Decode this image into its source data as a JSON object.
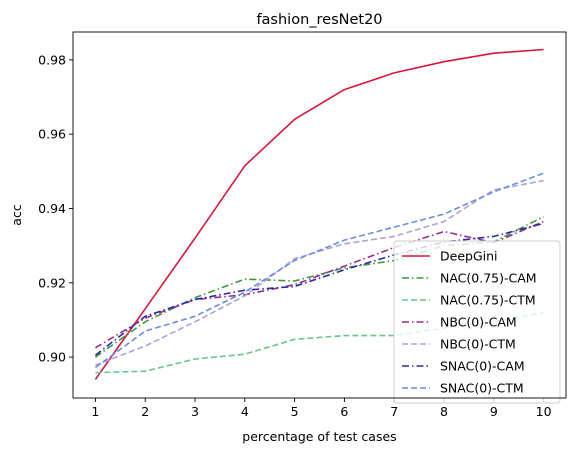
{
  "chart_data": {
    "type": "line",
    "title": "fashion_resNet20",
    "xlabel": "percentage of test cases",
    "ylabel": "acc",
    "x": [
      1,
      2,
      3,
      4,
      5,
      6,
      7,
      8,
      9,
      10
    ],
    "xticks": [
      "1",
      "2",
      "3",
      "4",
      "5",
      "6",
      "7",
      "8",
      "9",
      "10"
    ],
    "yticks": [
      0.9,
      0.92,
      0.94,
      0.96,
      0.98
    ],
    "ytick_labels": [
      "0.90",
      "0.92",
      "0.94",
      "0.96",
      "0.98"
    ],
    "xlim": [
      0.55,
      10.45
    ],
    "ylim": [
      0.889,
      0.9875
    ],
    "grid": false,
    "legend": "lower-right",
    "series": [
      {
        "name": "DeepGini",
        "color": "#dc143c",
        "dash": "solid",
        "values": [
          0.894,
          0.913,
          0.932,
          0.9515,
          0.964,
          0.972,
          0.9765,
          0.9795,
          0.9818,
          0.9828
        ]
      },
      {
        "name": "NAC(0.75)-CAM",
        "color": "#3a9a3a",
        "dash": "dashdot",
        "values": [
          0.9,
          0.9095,
          0.916,
          0.921,
          0.9205,
          0.924,
          0.926,
          0.93,
          0.931,
          0.9378
        ]
      },
      {
        "name": "NAC(0.75)-CTM",
        "color": "#66c68c",
        "dash": "dashed",
        "values": [
          0.8958,
          0.8962,
          0.8995,
          0.9008,
          0.9048,
          0.9058,
          0.9058,
          0.9078,
          0.9095,
          0.912
        ]
      },
      {
        "name": "NBC(0)-CAM",
        "color": "#9b2c8c",
        "dash": "dashdot",
        "values": [
          0.9025,
          0.9105,
          0.9155,
          0.9168,
          0.9195,
          0.9245,
          0.9295,
          0.9338,
          0.9308,
          0.9365
        ]
      },
      {
        "name": "NBC(0)-CTM",
        "color": "#b0a0dc",
        "dash": "dashed",
        "values": [
          0.8978,
          0.903,
          0.9095,
          0.9165,
          0.9265,
          0.9305,
          0.9325,
          0.9365,
          0.945,
          0.9475
        ]
      },
      {
        "name": "SNAC(0)-CAM",
        "color": "#2a2aa8",
        "dash": "dashdot",
        "values": [
          0.9005,
          0.911,
          0.9155,
          0.918,
          0.919,
          0.9235,
          0.9275,
          0.931,
          0.9325,
          0.936
        ]
      },
      {
        "name": "SNAC(0)-CTM",
        "color": "#6a8ee4",
        "dash": "dashed",
        "values": [
          0.8972,
          0.907,
          0.911,
          0.9175,
          0.926,
          0.9315,
          0.935,
          0.9385,
          0.9445,
          0.9495
        ]
      }
    ]
  }
}
